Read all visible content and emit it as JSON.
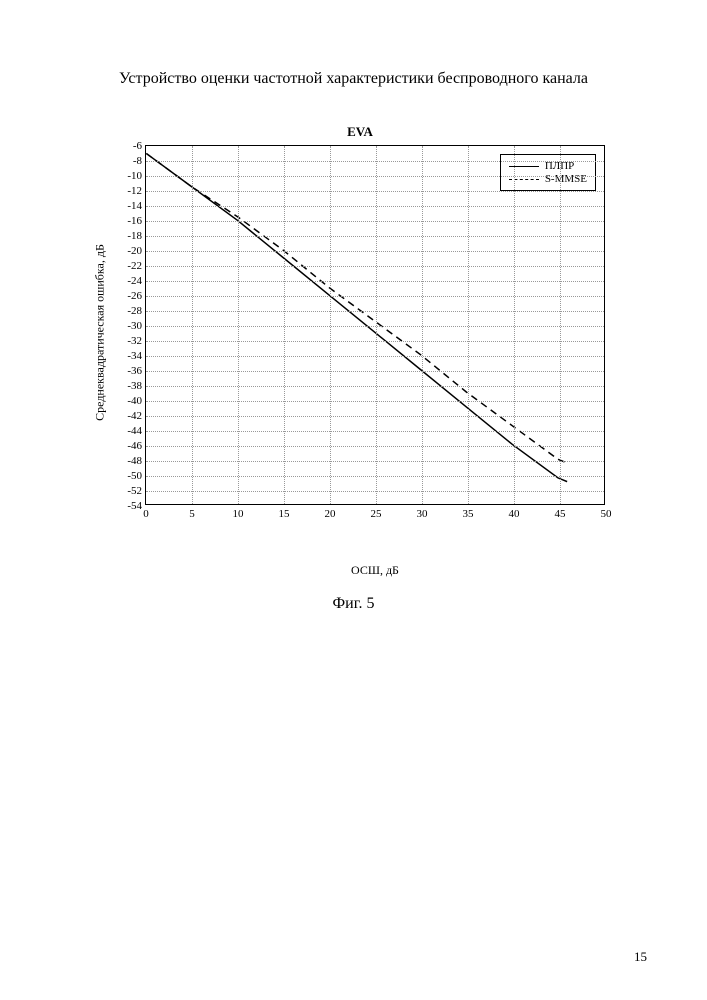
{
  "page_title": "Устройство оценки частотной характеристики беспроводного канала",
  "figure_caption": "Фиг. 5",
  "page_number": "15",
  "chart": {
    "type": "line",
    "title": "EVA",
    "title_fontsize": 13,
    "xlabel": "ОСШ, дБ",
    "ylabel": "Среднеквадратическая ошибка, дБ",
    "label_fontsize": 12,
    "xlim": [
      0,
      50
    ],
    "ylim": [
      -54,
      -6
    ],
    "xtick_step": 5,
    "ytick_step": 2,
    "xticks": [
      0,
      5,
      10,
      15,
      20,
      25,
      30,
      35,
      40,
      45,
      50
    ],
    "yticks": [
      -6,
      -8,
      -10,
      -12,
      -14,
      -16,
      -18,
      -20,
      -22,
      -24,
      -26,
      -28,
      -30,
      -32,
      -34,
      -36,
      -38,
      -40,
      -42,
      -44,
      -46,
      -48,
      -50,
      -52,
      -54
    ],
    "background_color": "#ffffff",
    "grid_color": "#999999",
    "border_color": "#000000",
    "series": [
      {
        "name": "ПЛПР",
        "line_style": "solid",
        "color": "#000000",
        "line_width": 1.5,
        "x": [
          0,
          5,
          10,
          15,
          20,
          25,
          30,
          35,
          40,
          45,
          46
        ],
        "y": [
          -7,
          -11.5,
          -16,
          -21,
          -26,
          -31,
          -36,
          -41,
          -46,
          -50.5,
          -51
        ]
      },
      {
        "name": "S-MMSE",
        "line_style": "dashed",
        "color": "#000000",
        "line_width": 1.5,
        "x": [
          0,
          5,
          10,
          15,
          20,
          25,
          30,
          35,
          40,
          45,
          46
        ],
        "y": [
          -7,
          -11.5,
          -15.5,
          -20,
          -25,
          -29.5,
          -34,
          -39,
          -43.5,
          -48,
          -48.5
        ]
      }
    ],
    "legend": {
      "position": "top-right",
      "border_color": "#000000",
      "background_color": "#ffffff",
      "fontsize": 11
    }
  }
}
